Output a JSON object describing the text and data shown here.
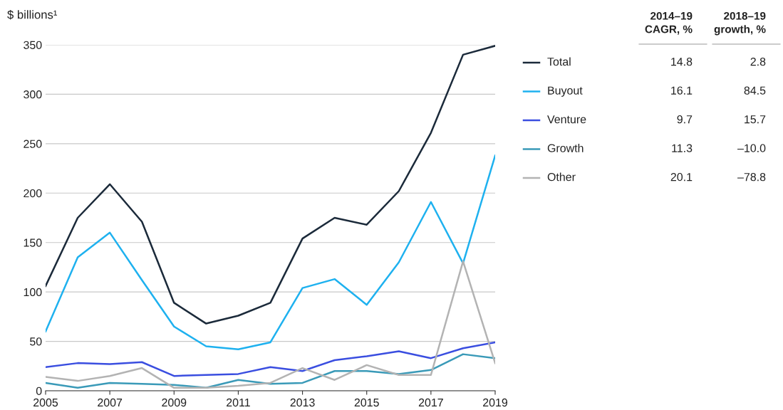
{
  "chart_data": {
    "type": "line",
    "ylabel": "$ billions¹",
    "x": [
      2005,
      2006,
      2007,
      2008,
      2009,
      2010,
      2011,
      2012,
      2013,
      2014,
      2015,
      2016,
      2017,
      2018,
      2019
    ],
    "series": [
      {
        "name": "Total",
        "color": "#1b2a3a",
        "values": [
          106,
          175,
          209,
          171,
          89,
          68,
          76,
          89,
          154,
          175,
          168,
          202,
          261,
          340,
          349
        ]
      },
      {
        "name": "Buyout",
        "color": "#1eb1ef",
        "values": [
          60,
          135,
          160,
          112,
          65,
          45,
          42,
          49,
          104,
          113,
          87,
          130,
          191,
          129,
          238
        ]
      },
      {
        "name": "Venture",
        "color": "#3a4ee0",
        "values": [
          24,
          28,
          27,
          29,
          15,
          16,
          17,
          24,
          20,
          31,
          35,
          40,
          33,
          43,
          49
        ]
      },
      {
        "name": "Growth",
        "color": "#3a9ab8",
        "values": [
          8,
          3,
          8,
          7,
          6,
          3,
          11,
          7,
          8,
          20,
          20,
          17,
          21,
          37,
          33
        ]
      },
      {
        "name": "Other",
        "color": "#b3b3b3",
        "values": [
          14,
          10,
          15,
          23,
          3,
          3,
          5,
          8,
          23,
          11,
          26,
          16,
          16,
          131,
          28
        ]
      }
    ],
    "xlim": [
      2005,
      2019
    ],
    "xticks": [
      2005,
      2007,
      2009,
      2011,
      2013,
      2015,
      2017,
      2019
    ],
    "ylim": [
      0,
      350
    ],
    "yticks": [
      0,
      50,
      100,
      150,
      200,
      250,
      300,
      350
    ],
    "grid": "y",
    "legend": "right",
    "annotations": [
      "2014–19\nCAGR, %",
      "2018–19\ngrowth, %",
      "14.8",
      "2.8",
      "16.1",
      "84.5",
      "9.7",
      "15.7",
      "11.3",
      "–10.0",
      "20.1",
      "–78.8"
    ]
  }
}
